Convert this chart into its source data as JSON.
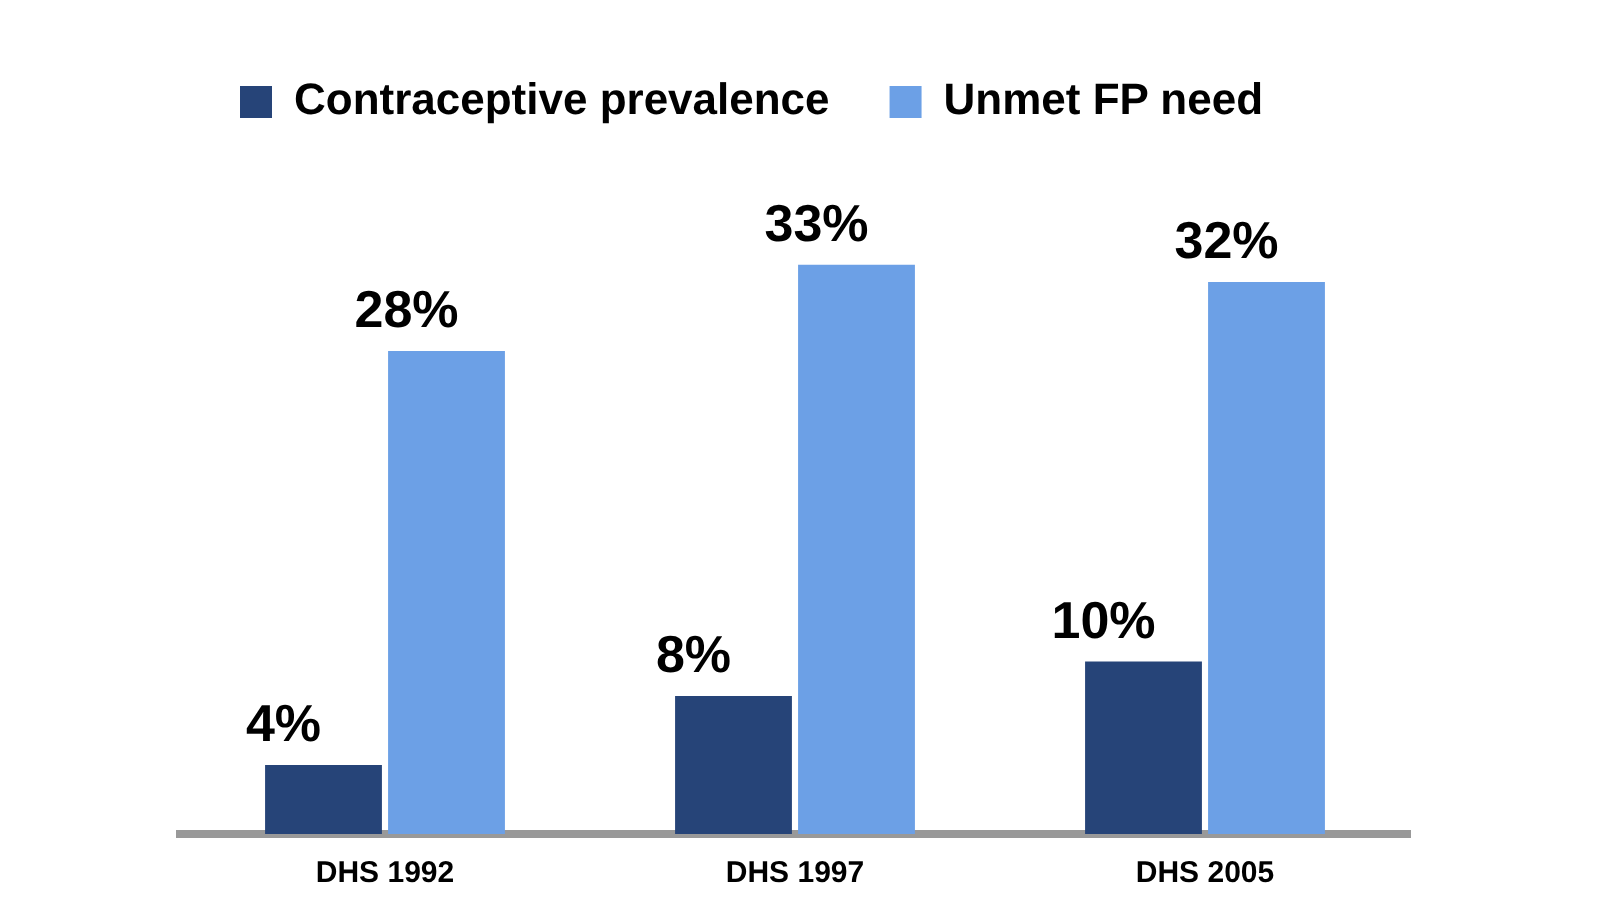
{
  "chart_data": {
    "type": "bar",
    "categories": [
      "DHS 1992",
      "DHS 1997",
      "DHS 2005"
    ],
    "series": [
      {
        "name": "Contraceptive prevalence",
        "color": "#264478",
        "values": [
          4,
          8,
          10
        ],
        "value_labels": [
          "4%",
          "8%",
          "10%"
        ]
      },
      {
        "name": "Unmet FP need",
        "color": "#6ca0e6",
        "values": [
          28,
          33,
          32
        ],
        "value_labels": [
          "28%",
          "33%",
          "32%"
        ]
      }
    ],
    "grid": false,
    "legend": "top"
  }
}
